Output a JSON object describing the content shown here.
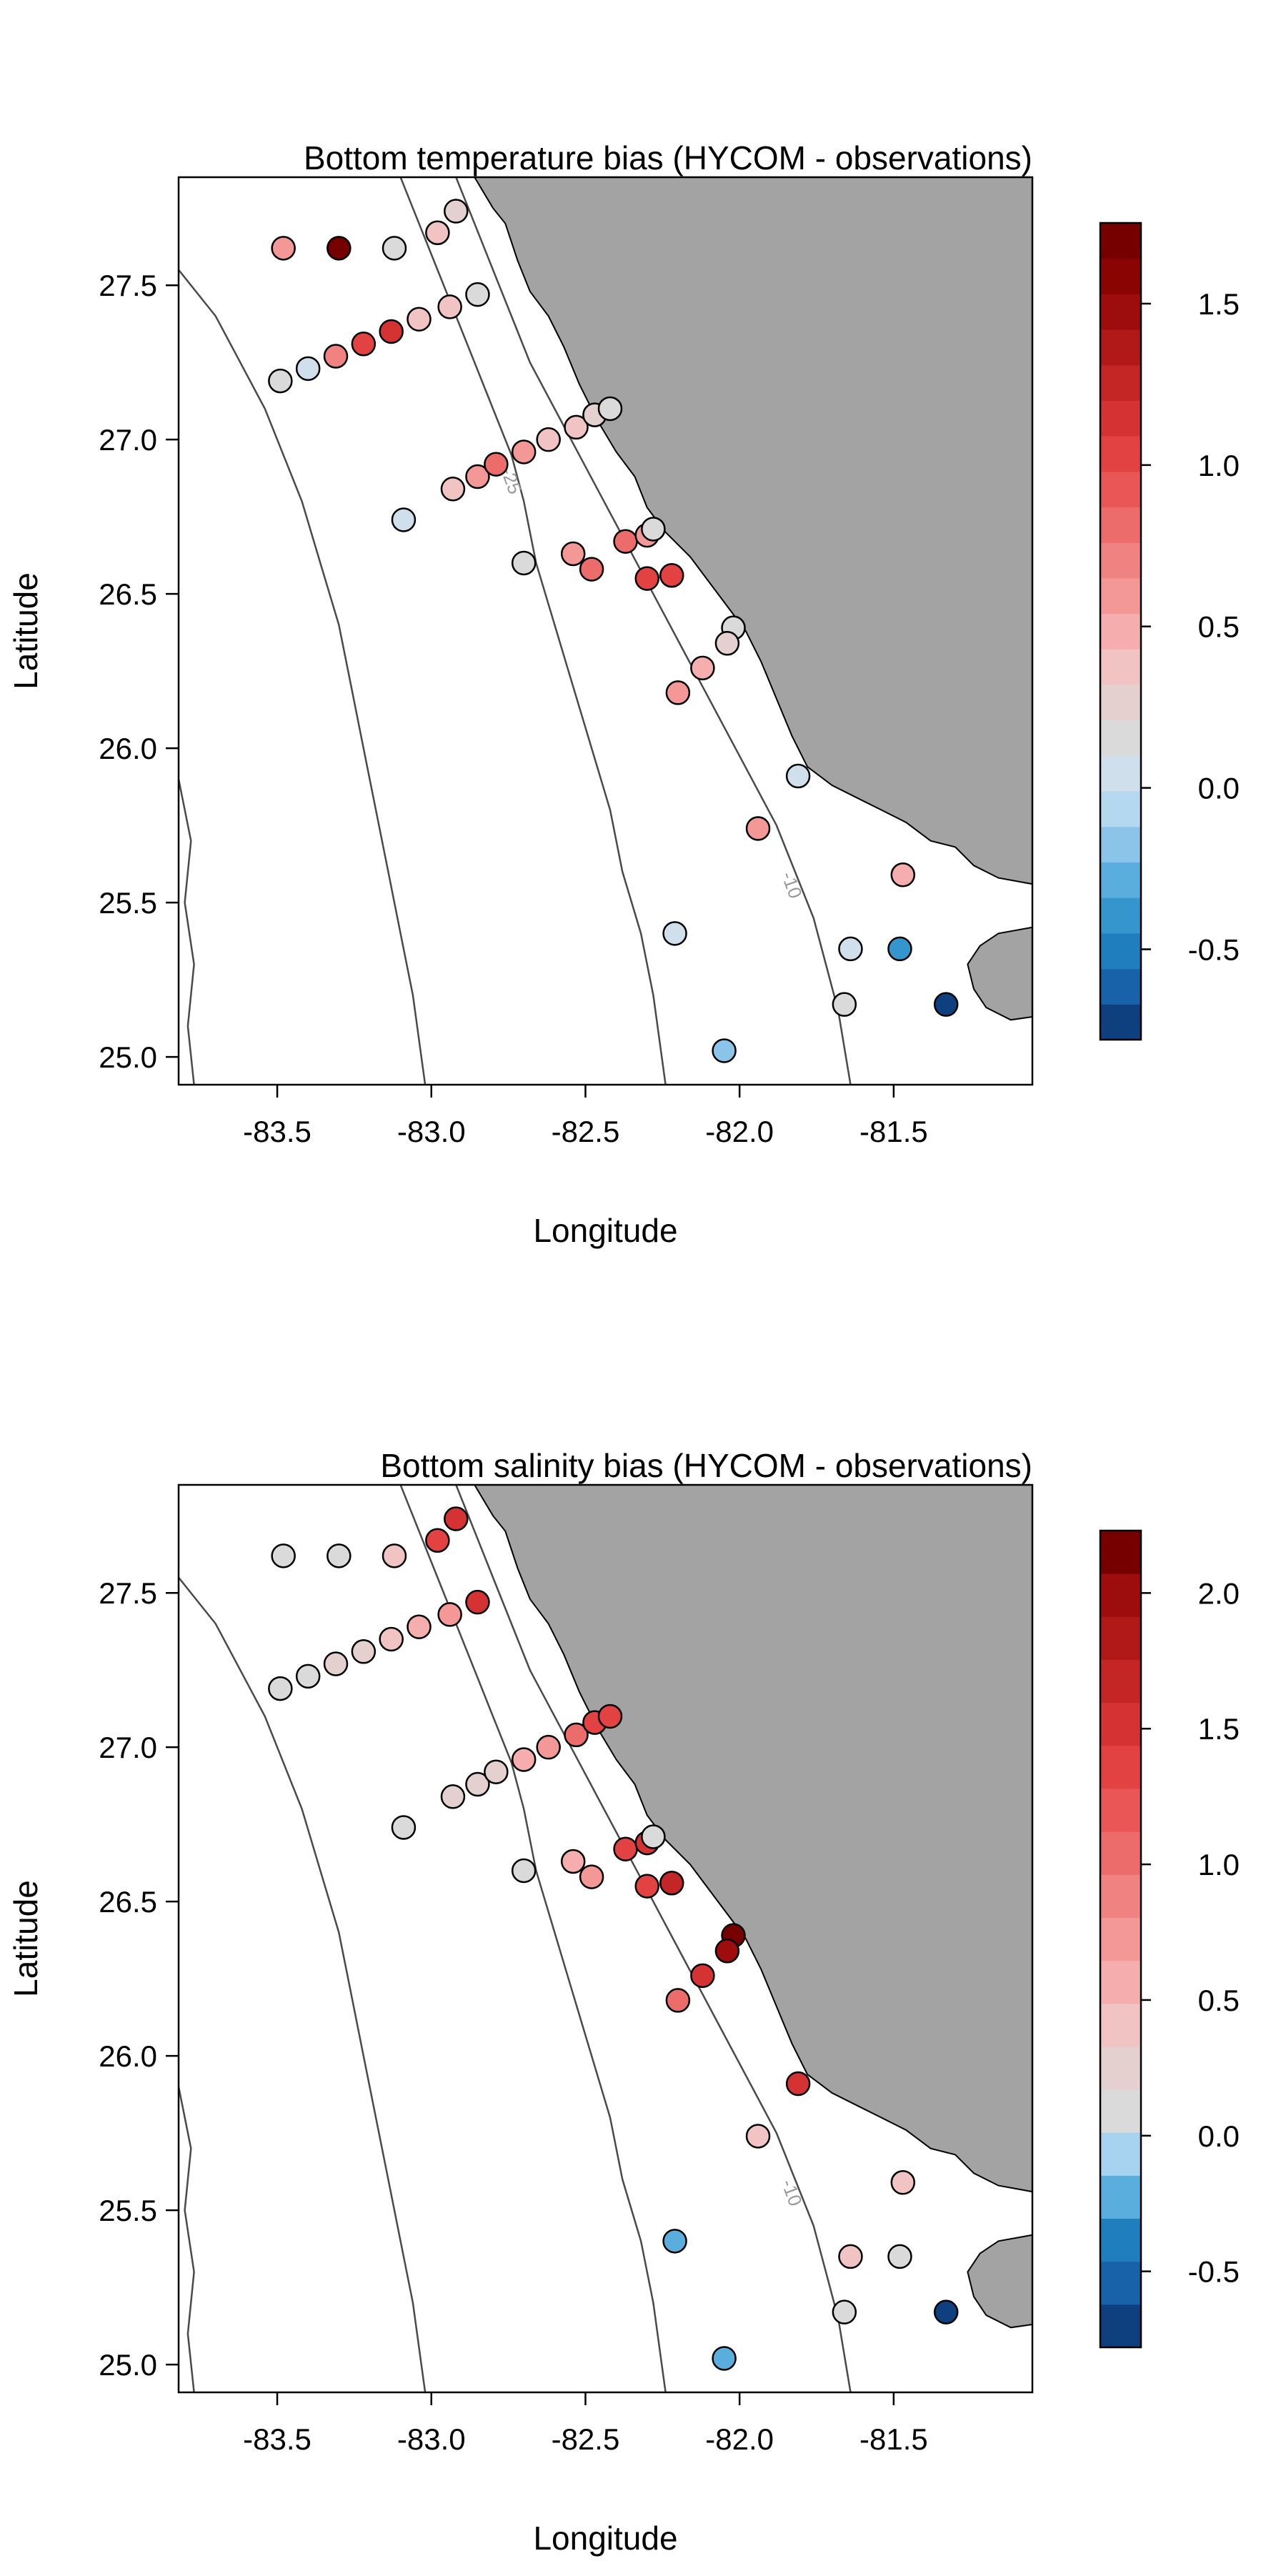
{
  "chart_data": [
    {
      "type": "scatter",
      "title": "Bottom temperature bias (HYCOM - observations)",
      "xlabel": "Longitude",
      "ylabel": "Latitude",
      "xlim": [
        -83.82,
        -81.05
      ],
      "ylim": [
        24.91,
        27.85
      ],
      "x_ticks": [
        "-83.5",
        "-83.0",
        "-82.5",
        "-82.0",
        "-81.5"
      ],
      "y_ticks": [
        "25.0",
        "25.5",
        "26.0",
        "26.5",
        "27.0",
        "27.5"
      ],
      "contour_labels": [
        "-25",
        "-10"
      ],
      "colorbar": {
        "min": -0.78,
        "max": 1.75,
        "ticks": [
          "-0.5",
          "0.0",
          "0.5",
          "1.0",
          "1.5"
        ],
        "colors": [
          "#0e3f7e",
          "#1762a9",
          "#1f7fbe",
          "#3596ce",
          "#5aaedd",
          "#8ac4e8",
          "#b3d8f0",
          "#cfdfec",
          "#dadada",
          "#e5d0d0",
          "#f1c3c3",
          "#f6adad",
          "#f49797",
          "#f08282",
          "#ec6c6c",
          "#e85656",
          "#e34242",
          "#d53333",
          "#c42525",
          "#b11818",
          "#9e0d0d",
          "#8a0404",
          "#760000"
        ]
      },
      "points": [
        {
          "x": -83.48,
          "y": 27.62,
          "v": 0.55
        },
        {
          "x": -83.3,
          "y": 27.62,
          "v": 1.7
        },
        {
          "x": -83.12,
          "y": 27.62,
          "v": 0.2
        },
        {
          "x": -82.98,
          "y": 27.67,
          "v": 0.35
        },
        {
          "x": -82.92,
          "y": 27.74,
          "v": 0.3
        },
        {
          "x": -83.49,
          "y": 27.19,
          "v": 0.1
        },
        {
          "x": -83.4,
          "y": 27.23,
          "v": 0.05
        },
        {
          "x": -83.31,
          "y": 27.27,
          "v": 0.7
        },
        {
          "x": -83.22,
          "y": 27.31,
          "v": 1.05
        },
        {
          "x": -83.13,
          "y": 27.35,
          "v": 1.1
        },
        {
          "x": -83.04,
          "y": 27.39,
          "v": 0.4
        },
        {
          "x": -82.94,
          "y": 27.43,
          "v": 0.35
        },
        {
          "x": -82.85,
          "y": 27.47,
          "v": 0.2
        },
        {
          "x": -82.93,
          "y": 26.84,
          "v": 0.35
        },
        {
          "x": -82.85,
          "y": 26.88,
          "v": 0.55
        },
        {
          "x": -82.79,
          "y": 26.92,
          "v": 0.85
        },
        {
          "x": -82.7,
          "y": 26.96,
          "v": 0.55
        },
        {
          "x": -82.62,
          "y": 27.0,
          "v": 0.4
        },
        {
          "x": -82.53,
          "y": 27.04,
          "v": 0.35
        },
        {
          "x": -82.47,
          "y": 27.08,
          "v": 0.3
        },
        {
          "x": -82.42,
          "y": 27.1,
          "v": 0.2
        },
        {
          "x": -83.09,
          "y": 26.74,
          "v": 0.05
        },
        {
          "x": -82.7,
          "y": 26.6,
          "v": 0.2
        },
        {
          "x": -82.54,
          "y": 26.63,
          "v": 0.65
        },
        {
          "x": -82.48,
          "y": 26.58,
          "v": 0.85
        },
        {
          "x": -82.37,
          "y": 26.67,
          "v": 0.8
        },
        {
          "x": -82.3,
          "y": 26.69,
          "v": 0.6
        },
        {
          "x": -82.28,
          "y": 26.71,
          "v": 0.1
        },
        {
          "x": -82.3,
          "y": 26.55,
          "v": 1.05
        },
        {
          "x": -82.22,
          "y": 26.56,
          "v": 1.0
        },
        {
          "x": -82.02,
          "y": 26.39,
          "v": 0.2
        },
        {
          "x": -82.04,
          "y": 26.34,
          "v": 0.3
        },
        {
          "x": -82.2,
          "y": 26.18,
          "v": 0.55
        },
        {
          "x": -82.12,
          "y": 26.26,
          "v": 0.45
        },
        {
          "x": -81.81,
          "y": 25.91,
          "v": 0.05
        },
        {
          "x": -81.94,
          "y": 25.74,
          "v": 0.65
        },
        {
          "x": -81.47,
          "y": 25.59,
          "v": 0.45
        },
        {
          "x": -81.48,
          "y": 25.35,
          "v": -0.4
        },
        {
          "x": -81.64,
          "y": 25.35,
          "v": 0.05
        },
        {
          "x": -81.66,
          "y": 25.17,
          "v": 0.1
        },
        {
          "x": -81.33,
          "y": 25.17,
          "v": -0.78
        },
        {
          "x": -82.21,
          "y": 25.4,
          "v": 0.0
        },
        {
          "x": -82.05,
          "y": 25.02,
          "v": -0.15
        }
      ]
    },
    {
      "type": "scatter",
      "title": "Bottom salinity bias (HYCOM - observations)",
      "xlabel": "Longitude",
      "ylabel": "Latitude",
      "xlim": [
        -83.82,
        -81.05
      ],
      "ylim": [
        24.91,
        27.85
      ],
      "x_ticks": [
        "-83.5",
        "-83.0",
        "-82.5",
        "-82.0",
        "-81.5"
      ],
      "y_ticks": [
        "25.0",
        "25.5",
        "26.0",
        "26.5",
        "27.0",
        "27.5"
      ],
      "contour_labels": [
        "-10"
      ],
      "colorbar": {
        "min": -0.78,
        "max": 2.23,
        "ticks": [
          "-0.5",
          "0.0",
          "0.5",
          "1.0",
          "1.5",
          "2.0"
        ],
        "colors": [
          "#0e3f7e",
          "#1762a9",
          "#1f7fbe",
          "#5aaedd",
          "#a7d3f0",
          "#dadada",
          "#e5d0d0",
          "#f1c3c3",
          "#f6adad",
          "#f49797",
          "#f08282",
          "#ec6c6c",
          "#e85656",
          "#e34242",
          "#d53333",
          "#c42525",
          "#b11818",
          "#9e0d0d",
          "#760000"
        ]
      },
      "points": [
        {
          "x": -83.48,
          "y": 27.62,
          "v": 0.05
        },
        {
          "x": -83.3,
          "y": 27.62,
          "v": 0.05
        },
        {
          "x": -83.12,
          "y": 27.62,
          "v": 0.4
        },
        {
          "x": -82.98,
          "y": 27.67,
          "v": 1.4
        },
        {
          "x": -82.92,
          "y": 27.74,
          "v": 1.55
        },
        {
          "x": -83.49,
          "y": 27.19,
          "v": 0.05
        },
        {
          "x": -83.4,
          "y": 27.23,
          "v": 0.1
        },
        {
          "x": -83.31,
          "y": 27.27,
          "v": 0.2
        },
        {
          "x": -83.22,
          "y": 27.31,
          "v": 0.3
        },
        {
          "x": -83.13,
          "y": 27.35,
          "v": 0.35
        },
        {
          "x": -83.04,
          "y": 27.39,
          "v": 0.55
        },
        {
          "x": -82.94,
          "y": 27.43,
          "v": 0.7
        },
        {
          "x": -82.85,
          "y": 27.47,
          "v": 1.55
        },
        {
          "x": -82.93,
          "y": 26.84,
          "v": 0.2
        },
        {
          "x": -82.85,
          "y": 26.88,
          "v": 0.2
        },
        {
          "x": -82.79,
          "y": 26.92,
          "v": 0.2
        },
        {
          "x": -82.7,
          "y": 26.96,
          "v": 0.6
        },
        {
          "x": -82.62,
          "y": 27.0,
          "v": 0.8
        },
        {
          "x": -82.53,
          "y": 27.04,
          "v": 1.1
        },
        {
          "x": -82.47,
          "y": 27.08,
          "v": 1.3
        },
        {
          "x": -82.42,
          "y": 27.1,
          "v": 1.4
        },
        {
          "x": -83.09,
          "y": 26.74,
          "v": 0.05
        },
        {
          "x": -82.7,
          "y": 26.6,
          "v": 0.05
        },
        {
          "x": -82.54,
          "y": 26.63,
          "v": 0.6
        },
        {
          "x": -82.48,
          "y": 26.58,
          "v": 0.75
        },
        {
          "x": -82.37,
          "y": 26.67,
          "v": 1.35
        },
        {
          "x": -82.3,
          "y": 26.69,
          "v": 1.55
        },
        {
          "x": -82.28,
          "y": 26.71,
          "v": 0.05
        },
        {
          "x": -82.3,
          "y": 26.55,
          "v": 1.4
        },
        {
          "x": -82.22,
          "y": 26.56,
          "v": 1.6
        },
        {
          "x": -82.02,
          "y": 26.39,
          "v": 2.15
        },
        {
          "x": -82.04,
          "y": 26.34,
          "v": 2.05
        },
        {
          "x": -82.2,
          "y": 26.18,
          "v": 1.0
        },
        {
          "x": -82.12,
          "y": 26.26,
          "v": 1.55
        },
        {
          "x": -81.81,
          "y": 25.91,
          "v": 1.5
        },
        {
          "x": -81.94,
          "y": 25.74,
          "v": 0.45
        },
        {
          "x": -81.47,
          "y": 25.59,
          "v": 0.35
        },
        {
          "x": -81.48,
          "y": 25.35,
          "v": 0.05
        },
        {
          "x": -81.64,
          "y": 25.35,
          "v": 0.45
        },
        {
          "x": -81.66,
          "y": 25.17,
          "v": 0.1
        },
        {
          "x": -81.33,
          "y": 25.17,
          "v": -0.78
        },
        {
          "x": -82.21,
          "y": 25.4,
          "v": -0.2
        },
        {
          "x": -82.05,
          "y": 25.02,
          "v": -0.25
        }
      ]
    }
  ]
}
